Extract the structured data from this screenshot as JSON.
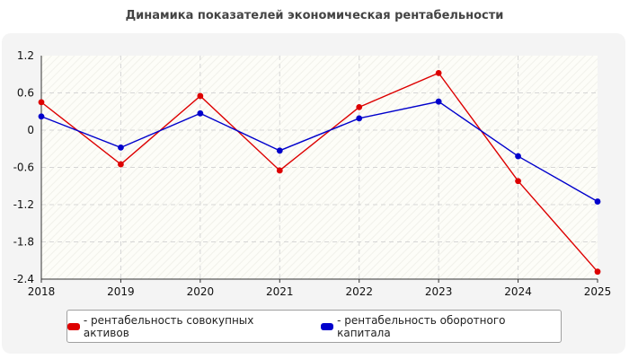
{
  "chart_data": {
    "type": "line",
    "title": "Динамика показателей экономическая рентабельности",
    "x": [
      "2018",
      "2019",
      "2020",
      "2021",
      "2022",
      "2023",
      "2024",
      "2025"
    ],
    "ylim": [
      -2.4,
      1.2
    ],
    "yticks": [
      "1.2",
      "0.6",
      "0",
      "-0.6",
      "-1.2",
      "-1.8",
      "-2.4"
    ],
    "grid": true,
    "legend_position": "bottom",
    "series": [
      {
        "name": "- рентабельность совокупных активов",
        "color": "#dd0000",
        "values": [
          0.45,
          -0.55,
          0.55,
          -0.65,
          0.37,
          0.92,
          -0.82,
          -2.28
        ]
      },
      {
        "name": "- рентабельность оборотного капитала",
        "color": "#0000cc",
        "values": [
          0.22,
          -0.28,
          0.27,
          -0.33,
          0.19,
          0.46,
          -0.42,
          -1.15
        ]
      }
    ]
  }
}
